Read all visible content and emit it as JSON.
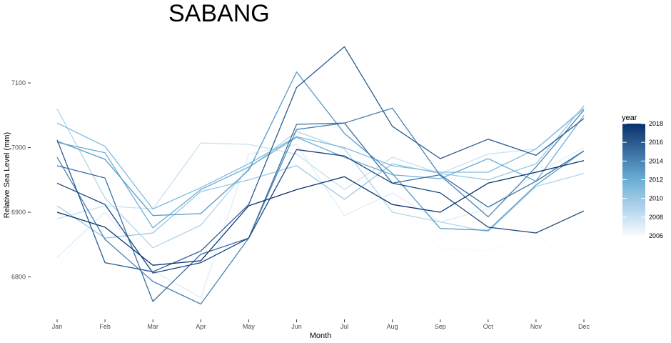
{
  "chart_data": {
    "type": "line",
    "title": "SABANG",
    "xlabel": "Month",
    "ylabel": "Relative Sea Level (mm)",
    "categories": [
      "Jan",
      "Feb",
      "Mar",
      "Apr",
      "May",
      "Jun",
      "Jul",
      "Aug",
      "Sep",
      "Oct",
      "Nov",
      "Dec"
    ],
    "ylim": [
      6742,
      7162
    ],
    "yticks": [
      6800,
      6900,
      7000,
      7100
    ],
    "grid": false,
    "legend": {
      "title": "year",
      "position": "right",
      "ticks": [
        2006,
        2008,
        2010,
        2012,
        2014,
        2016,
        2018
      ],
      "range": [
        2006,
        2018
      ],
      "color_low": "#f7fbff",
      "color_high": "#08306b"
    },
    "series": [
      {
        "year": 2006,
        "values": [
          6815,
          6905,
          6870,
          6825,
          6980,
          6990,
          6960,
          6925,
          6845,
          6840,
          6870,
          6790
        ]
      },
      {
        "year": 2007,
        "values": [
          6830,
          6900,
          6810,
          6768,
          6990,
          7005,
          6895,
          6930,
          6885,
          6905,
          6960,
          7000
        ]
      },
      {
        "year": 2008,
        "values": [
          6890,
          6910,
          6905,
          7007,
          7005,
          6990,
          6935,
          6985,
          6960,
          6990,
          6998,
          7062
        ]
      },
      {
        "year": 2009,
        "values": [
          7060,
          6922,
          6845,
          6880,
          6968,
          7025,
          6998,
          6900,
          6885,
          6870,
          6940,
          6960
        ]
      },
      {
        "year": 2010,
        "values": [
          6910,
          6860,
          6868,
          6932,
          6950,
          6972,
          6920,
          6975,
          6960,
          6950,
          6975,
          7065
        ]
      },
      {
        "year": 2011,
        "values": [
          7038,
          7002,
          6905,
          6938,
          6975,
          7017,
          7000,
          6972,
          6962,
          6962,
          6998,
          7060
        ]
      },
      {
        "year": 2012,
        "values": [
          7008,
          6992,
          6876,
          6935,
          6970,
          7016,
          6985,
          6958,
          6952,
          6983,
          6948,
          7050
        ]
      },
      {
        "year": 2013,
        "values": [
          7010,
          6982,
          6895,
          6898,
          6965,
          7117,
          7022,
          6960,
          6875,
          6872,
          6942,
          6995
        ]
      },
      {
        "year": 2014,
        "values": [
          6985,
          6858,
          6793,
          6758,
          6860,
          7028,
          7038,
          7061,
          6957,
          6893,
          6970,
          7058
        ]
      },
      {
        "year": 2015,
        "values": [
          6972,
          6953,
          6762,
          6835,
          6860,
          7036,
          7038,
          6945,
          6958,
          6908,
          6948,
          6995
        ]
      },
      {
        "year": 2016,
        "values": [
          7012,
          6822,
          6808,
          6840,
          6912,
          7093,
          7156,
          7033,
          6983,
          7013,
          6988,
          7045
        ]
      },
      {
        "year": 2017,
        "values": [
          6945,
          6912,
          6806,
          6822,
          6860,
          6997,
          6987,
          6945,
          6930,
          6877,
          6868,
          6902
        ]
      },
      {
        "year": 2018,
        "values": [
          6900,
          6877,
          6818,
          6825,
          6910,
          6935,
          6955,
          6912,
          6900,
          6945,
          6962,
          6980
        ]
      }
    ]
  }
}
